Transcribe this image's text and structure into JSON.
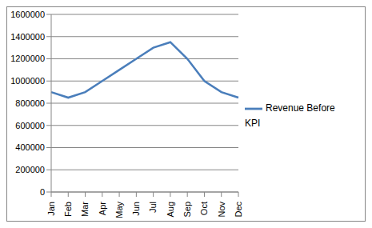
{
  "chart_data": {
    "type": "line",
    "categories": [
      "Jan",
      "Feb",
      "Mar",
      "Apr",
      "May",
      "Jun",
      "Jul",
      "Aug",
      "Sep",
      "Oct",
      "Nov",
      "Dec"
    ],
    "series": [
      {
        "name": "Revenue Before KPI",
        "color": "#4a7ebb",
        "values": [
          900000,
          850000,
          900000,
          1000000,
          1100000,
          1200000,
          1300000,
          1350000,
          1200000,
          1000000,
          900000,
          850000
        ]
      }
    ],
    "ylim": [
      0,
      1600000
    ],
    "yticks": [
      0,
      200000,
      400000,
      600000,
      800000,
      1000000,
      1200000,
      1400000,
      1600000
    ],
    "grid": true,
    "legend": "right"
  }
}
